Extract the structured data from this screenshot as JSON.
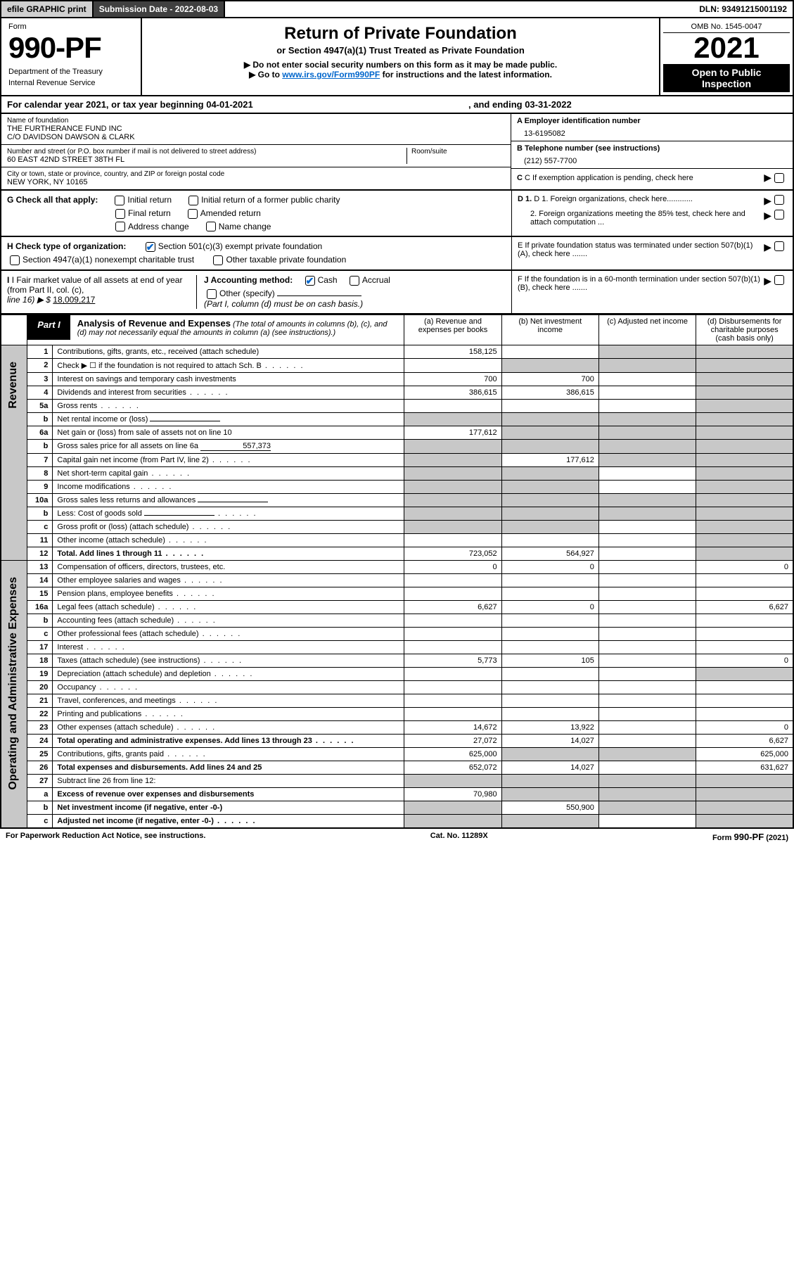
{
  "topbar": {
    "efile": "efile GRAPHIC print",
    "subdate_label": "Submission Date - 2022-08-03",
    "dln": "DLN: 93491215001192"
  },
  "header": {
    "form_label": "Form",
    "form_number": "990-PF",
    "dept1": "Department of the Treasury",
    "dept2": "Internal Revenue Service",
    "title": "Return of Private Foundation",
    "subtitle": "or Section 4947(a)(1) Trust Treated as Private Foundation",
    "instr1": "▶ Do not enter social security numbers on this form as it may be made public.",
    "instr2_pre": "▶ Go to ",
    "instr2_link": "www.irs.gov/Form990PF",
    "instr2_post": " for instructions and the latest information.",
    "omb": "OMB No. 1545-0047",
    "year": "2021",
    "open_public": "Open to Public Inspection"
  },
  "calendar": {
    "text": "For calendar year 2021, or tax year beginning 04-01-2021",
    "ending": ", and ending 03-31-2022"
  },
  "info": {
    "name_label": "Name of foundation",
    "name1": "THE FURTHERANCE FUND INC",
    "name2": "C/O DAVIDSON DAWSON & CLARK",
    "addr_label": "Number and street (or P.O. box number if mail is not delivered to street address)",
    "addr": "60 EAST 42ND STREET 38TH FL",
    "room_label": "Room/suite",
    "city_label": "City or town, state or province, country, and ZIP or foreign postal code",
    "city": "NEW YORK, NY  10165",
    "ein_label": "A Employer identification number",
    "ein": "13-6195082",
    "tel_label": "B Telephone number (see instructions)",
    "tel": "(212) 557-7700",
    "c_label": "C If exemption application is pending, check here",
    "d1": "D 1. Foreign organizations, check here............",
    "d2": "2. Foreign organizations meeting the 85% test, check here and attach computation ...",
    "e_label": "E  If private foundation status was terminated under section 507(b)(1)(A), check here .......",
    "f_label": "F  If the foundation is in a 60-month termination under section 507(b)(1)(B), check here ......."
  },
  "checks": {
    "g_label": "G Check all that apply:",
    "g_opts": [
      "Initial return",
      "Initial return of a former public charity",
      "Final return",
      "Amended return",
      "Address change",
      "Name change"
    ],
    "h_label": "H Check type of organization:",
    "h1": "Section 501(c)(3) exempt private foundation",
    "h2": "Section 4947(a)(1) nonexempt charitable trust",
    "h3": "Other taxable private foundation",
    "i_label": "I Fair market value of all assets at end of year (from Part II, col. (c),",
    "i_line": "line 16) ▶ $ ",
    "i_val": "18,009,217",
    "j_label": "J Accounting method:",
    "j_cash": "Cash",
    "j_accrual": "Accrual",
    "j_other": "Other (specify)",
    "j_note": "(Part I, column (d) must be on cash basis.)"
  },
  "part1": {
    "label": "Part I",
    "title": "Analysis of Revenue and Expenses",
    "note": "(The total of amounts in columns (b), (c), and (d) may not necessarily equal the amounts in column (a) (see instructions).)",
    "col_a": "(a)   Revenue and expenses per books",
    "col_b": "(b)   Net investment income",
    "col_c": "(c)   Adjusted net income",
    "col_d": "(d)  Disbursements for charitable purposes (cash basis only)"
  },
  "side_labels": {
    "revenue": "Revenue",
    "expenses": "Operating and Administrative Expenses"
  },
  "rows": [
    {
      "n": "1",
      "desc": "Contributions, gifts, grants, etc., received (attach schedule)",
      "a": "158,125",
      "b": "",
      "c": "g",
      "d": "g"
    },
    {
      "n": "2",
      "desc": "Check ▶ ☐ if the foundation is not required to attach Sch. B",
      "a": "",
      "b": "g",
      "c": "g",
      "d": "g",
      "dotted": true
    },
    {
      "n": "3",
      "desc": "Interest on savings and temporary cash investments",
      "a": "700",
      "b": "700",
      "c": "",
      "d": "g"
    },
    {
      "n": "4",
      "desc": "Dividends and interest from securities",
      "a": "386,615",
      "b": "386,615",
      "c": "",
      "d": "g",
      "dotted": true
    },
    {
      "n": "5a",
      "desc": "Gross rents",
      "a": "",
      "b": "",
      "c": "",
      "d": "g",
      "dotted": true
    },
    {
      "n": "b",
      "desc": "Net rental income or (loss)",
      "a": "g",
      "b": "g",
      "c": "g",
      "d": "g",
      "inline": true
    },
    {
      "n": "6a",
      "desc": "Net gain or (loss) from sale of assets not on line 10",
      "a": "177,612",
      "b": "g",
      "c": "g",
      "d": "g"
    },
    {
      "n": "b",
      "desc": "Gross sales price for all assets on line 6a",
      "a": "g",
      "b": "g",
      "c": "g",
      "d": "g",
      "inline": "557,373"
    },
    {
      "n": "7",
      "desc": "Capital gain net income (from Part IV, line 2)",
      "a": "g",
      "b": "177,612",
      "c": "g",
      "d": "g",
      "dotted": true
    },
    {
      "n": "8",
      "desc": "Net short-term capital gain",
      "a": "g",
      "b": "g",
      "c": "",
      "d": "g",
      "dotted": true
    },
    {
      "n": "9",
      "desc": "Income modifications",
      "a": "g",
      "b": "g",
      "c": "",
      "d": "g",
      "dotted": true
    },
    {
      "n": "10a",
      "desc": "Gross sales less returns and allowances",
      "a": "g",
      "b": "g",
      "c": "g",
      "d": "g",
      "inline": true
    },
    {
      "n": "b",
      "desc": "Less: Cost of goods sold",
      "a": "g",
      "b": "g",
      "c": "g",
      "d": "g",
      "inline": true,
      "dotted": true
    },
    {
      "n": "c",
      "desc": "Gross profit or (loss) (attach schedule)",
      "a": "g",
      "b": "g",
      "c": "",
      "d": "g",
      "dotted": true
    },
    {
      "n": "11",
      "desc": "Other income (attach schedule)",
      "a": "",
      "b": "",
      "c": "",
      "d": "g",
      "dotted": true
    },
    {
      "n": "12",
      "desc": "Total. Add lines 1 through 11",
      "a": "723,052",
      "b": "564,927",
      "c": "",
      "d": "g",
      "bold": true,
      "dotted": true
    }
  ],
  "exp_rows": [
    {
      "n": "13",
      "desc": "Compensation of officers, directors, trustees, etc.",
      "a": "0",
      "b": "0",
      "c": "",
      "d": "0"
    },
    {
      "n": "14",
      "desc": "Other employee salaries and wages",
      "a": "",
      "b": "",
      "c": "",
      "d": "",
      "dotted": true
    },
    {
      "n": "15",
      "desc": "Pension plans, employee benefits",
      "a": "",
      "b": "",
      "c": "",
      "d": "",
      "dotted": true
    },
    {
      "n": "16a",
      "desc": "Legal fees (attach schedule)",
      "a": "6,627",
      "b": "0",
      "c": "",
      "d": "6,627",
      "dotted": true
    },
    {
      "n": "b",
      "desc": "Accounting fees (attach schedule)",
      "a": "",
      "b": "",
      "c": "",
      "d": "",
      "dotted": true
    },
    {
      "n": "c",
      "desc": "Other professional fees (attach schedule)",
      "a": "",
      "b": "",
      "c": "",
      "d": "",
      "dotted": true
    },
    {
      "n": "17",
      "desc": "Interest",
      "a": "",
      "b": "",
      "c": "",
      "d": "",
      "dotted": true
    },
    {
      "n": "18",
      "desc": "Taxes (attach schedule) (see instructions)",
      "a": "5,773",
      "b": "105",
      "c": "",
      "d": "0",
      "dotted": true
    },
    {
      "n": "19",
      "desc": "Depreciation (attach schedule) and depletion",
      "a": "",
      "b": "",
      "c": "",
      "d": "g",
      "dotted": true
    },
    {
      "n": "20",
      "desc": "Occupancy",
      "a": "",
      "b": "",
      "c": "",
      "d": "",
      "dotted": true
    },
    {
      "n": "21",
      "desc": "Travel, conferences, and meetings",
      "a": "",
      "b": "",
      "c": "",
      "d": "",
      "dotted": true
    },
    {
      "n": "22",
      "desc": "Printing and publications",
      "a": "",
      "b": "",
      "c": "",
      "d": "",
      "dotted": true
    },
    {
      "n": "23",
      "desc": "Other expenses (attach schedule)",
      "a": "14,672",
      "b": "13,922",
      "c": "",
      "d": "0",
      "dotted": true
    },
    {
      "n": "24",
      "desc": "Total operating and administrative expenses. Add lines 13 through 23",
      "a": "27,072",
      "b": "14,027",
      "c": "",
      "d": "6,627",
      "bold": true,
      "dotted": true
    },
    {
      "n": "25",
      "desc": "Contributions, gifts, grants paid",
      "a": "625,000",
      "b": "g",
      "c": "g",
      "d": "625,000",
      "dotted": true
    },
    {
      "n": "26",
      "desc": "Total expenses and disbursements. Add lines 24 and 25",
      "a": "652,072",
      "b": "14,027",
      "c": "",
      "d": "631,627",
      "bold": true
    },
    {
      "n": "27",
      "desc": "Subtract line 26 from line 12:",
      "a": "g",
      "b": "g",
      "c": "g",
      "d": "g"
    },
    {
      "n": "a",
      "desc": "Excess of revenue over expenses and disbursements",
      "a": "70,980",
      "b": "g",
      "c": "g",
      "d": "g",
      "bold": true
    },
    {
      "n": "b",
      "desc": "Net investment income (if negative, enter -0-)",
      "a": "g",
      "b": "550,900",
      "c": "g",
      "d": "g",
      "bold": true
    },
    {
      "n": "c",
      "desc": "Adjusted net income (if negative, enter -0-)",
      "a": "g",
      "b": "g",
      "c": "",
      "d": "g",
      "bold": true,
      "dotted": true
    }
  ],
  "footer": {
    "left": "For Paperwork Reduction Act Notice, see instructions.",
    "center": "Cat. No. 11289X",
    "right": "Form 990-PF (2021)"
  },
  "colors": {
    "grey_cell": "#c8c8c8",
    "dark_header": "#404040",
    "link": "#0066cc",
    "black": "#000000",
    "white": "#ffffff"
  }
}
